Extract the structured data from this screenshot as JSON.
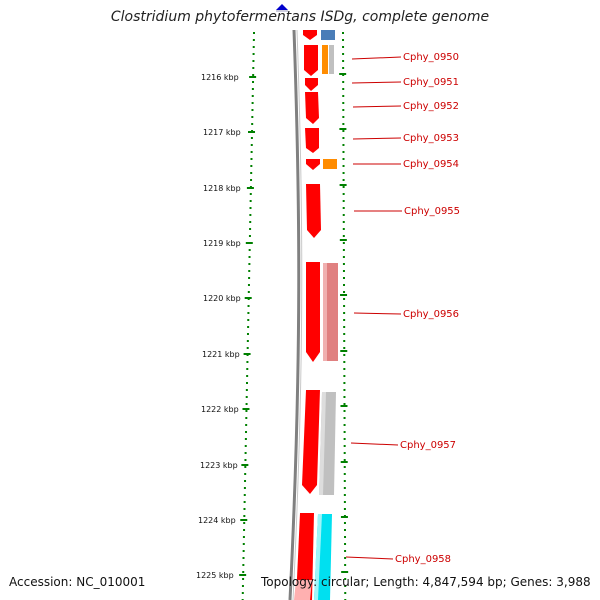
{
  "title": "Clostridium phytofermentans ISDg, complete genome",
  "footer": {
    "accession": "Accession: NC_010001",
    "topology": "Topology: circular; Length: 4,847,594 bp; Genes: 3,988"
  },
  "kbp_labels": [
    "1216 kbp",
    "1217 kbp",
    "1218 kbp",
    "1219 kbp",
    "1220 kbp",
    "1221 kbp",
    "1222 kbp",
    "1223 kbp",
    "1224 kbp",
    "1225 kbp"
  ],
  "genes": [
    {
      "label": "Cphy_0950",
      "color": "#ff0000"
    },
    {
      "label": "Cphy_0951",
      "color": "#ff0000"
    },
    {
      "label": "Cphy_0952",
      "color": "#ff0000"
    },
    {
      "label": "Cphy_0953",
      "color": "#ff0000"
    },
    {
      "label": "Cphy_0954",
      "color": "#ff0000"
    },
    {
      "label": "Cphy_0955",
      "color": "#ff0000"
    },
    {
      "label": "Cphy_0956",
      "color": "#ff0000"
    },
    {
      "label": "Cphy_0957",
      "color": "#ff0000"
    },
    {
      "label": "Cphy_0958",
      "color": "#ff0000"
    }
  ],
  "colors": {
    "cds": "#ff0000",
    "backbone": "#808080",
    "ticks": "#008000",
    "label": "#cc0000",
    "blue_feature": "#4a7db8",
    "orange_feature": "#ff8c00",
    "pink_feature": "#e08080",
    "gray_feature": "#c0c0c0",
    "cyan_feature": "#00e0f0",
    "marker": "#0000cc"
  }
}
